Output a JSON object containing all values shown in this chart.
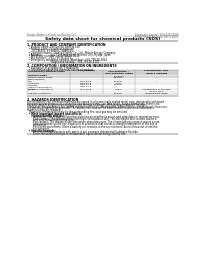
{
  "background_color": "#ffffff",
  "header_left": "Product Name: Lithium Ion Battery Cell",
  "header_right_line1": "Substance Control: SDS-049-00010",
  "header_right_line2": "Established / Revision: Dec.1.2016",
  "title": "Safety data sheet for chemical products (SDS)",
  "section1_title": "1. PRODUCT AND COMPANY IDENTIFICATION",
  "section1_lines": [
    "  • Product name: Lithium Ion Battery Cell",
    "  • Product code: Cylindrical-type cell",
    "       SY-18650L, SY-18650L, SY-B6504",
    "  • Company name:    Sanyo Electric Co., Ltd., Mobile Energy Company",
    "  • Address:            2022-1  Kaminaizen, Sumoto City, Hyogo, Japan",
    "  • Telephone number:   +81-799-26-4111",
    "  • Fax number:   +81-799-26-4121",
    "  • Emergency telephone number (Weekday): +81-799-26-3842",
    "                                (Night and holiday): +81-799-26-4101"
  ],
  "section2_title": "2. COMPOSITION / INFORMATION ON INGREDIENTS",
  "section2_intro": "  • Substance or preparation: Preparation",
  "section2_sub": "  • Information about the chemical nature of product:",
  "table_header_row1": [
    "Component/chemical name",
    "CAS number",
    "Concentration /",
    "Classification and"
  ],
  "table_header_row2": [
    "",
    "",
    "Concentration range",
    "hazard labeling"
  ],
  "table_header_row3": [
    "General name",
    "",
    "(30-60%)",
    ""
  ],
  "table_rows": [
    [
      "Lithium cobalt oxide",
      ".",
      "30-60%",
      "."
    ],
    [
      "(LiMn/Co/NiO2)",
      "",
      "",
      ""
    ],
    [
      "Iron",
      "7439-89-6",
      "15-25%",
      "."
    ],
    [
      "Aluminum",
      "7429-90-5",
      "2-6%",
      "."
    ],
    [
      "Graphite",
      "",
      "10-25%",
      "."
    ],
    [
      "(Hard or graphite-1)",
      "7782-42-5",
      "",
      ""
    ],
    [
      "(Artificial graphite-1)",
      "7782-42-5",
      "",
      ""
    ],
    [
      "Copper",
      "7440-50-8",
      "5-15%",
      "Sensitization of the skin"
    ],
    [
      "",
      "",
      "",
      "group No.2"
    ],
    [
      "Organic electrolyte",
      ".",
      "10-20%",
      "Inflammable liquid"
    ]
  ],
  "section3_title": "3. HAZARDS IDENTIFICATION",
  "section3_lines": [
    "For the battery cell, chemical materials are stored in a hermetically sealed metal case, designed to withstand",
    "temperatures and pressures-concentrations during normal use. As a result, during normal use, there is no",
    "physical danger of ignition or explosion and there is no danger of hazardous materials leakage.",
    "   However, if exposed to a fire, added mechanical shocks, decomposed, when electric current directly flows use,",
    "the gas inside cannot be operated. The battery cell case will be breached of fire-patterns, hazardous",
    "materials may be released.",
    "   Moreover, if heated strongly by the surrounding fire, soot gas may be emitted."
  ],
  "section3_bullet1": "  • Most important hazard and effects:",
  "section3_human": "     Human health effects:",
  "section3_human_lines": [
    "        Inhalation: The release of the electrolyte has an anesthesia action and stimulates in respiratory tract.",
    "        Skin contact: The release of the electrolyte stimulates a skin. The electrolyte skin contact causes a",
    "        sore and stimulation on the skin.",
    "        Eye contact: The release of the electrolyte stimulates eyes. The electrolyte eye contact causes a sore",
    "        and stimulation on the eye. Especially, a substance that causes a strong inflammation of the eye is",
    "        contained.",
    "        Environmental effects: Since a battery cell remains in the environment, do not throw out it into the",
    "        environment."
  ],
  "section3_specific": "  • Specific hazards:",
  "section3_specific_lines": [
    "        If the electrolyte contacts with water, it will generate detrimental hydrogen fluoride.",
    "        Since the used electrolyte is inflammable liquid, do not bring close to fire."
  ]
}
